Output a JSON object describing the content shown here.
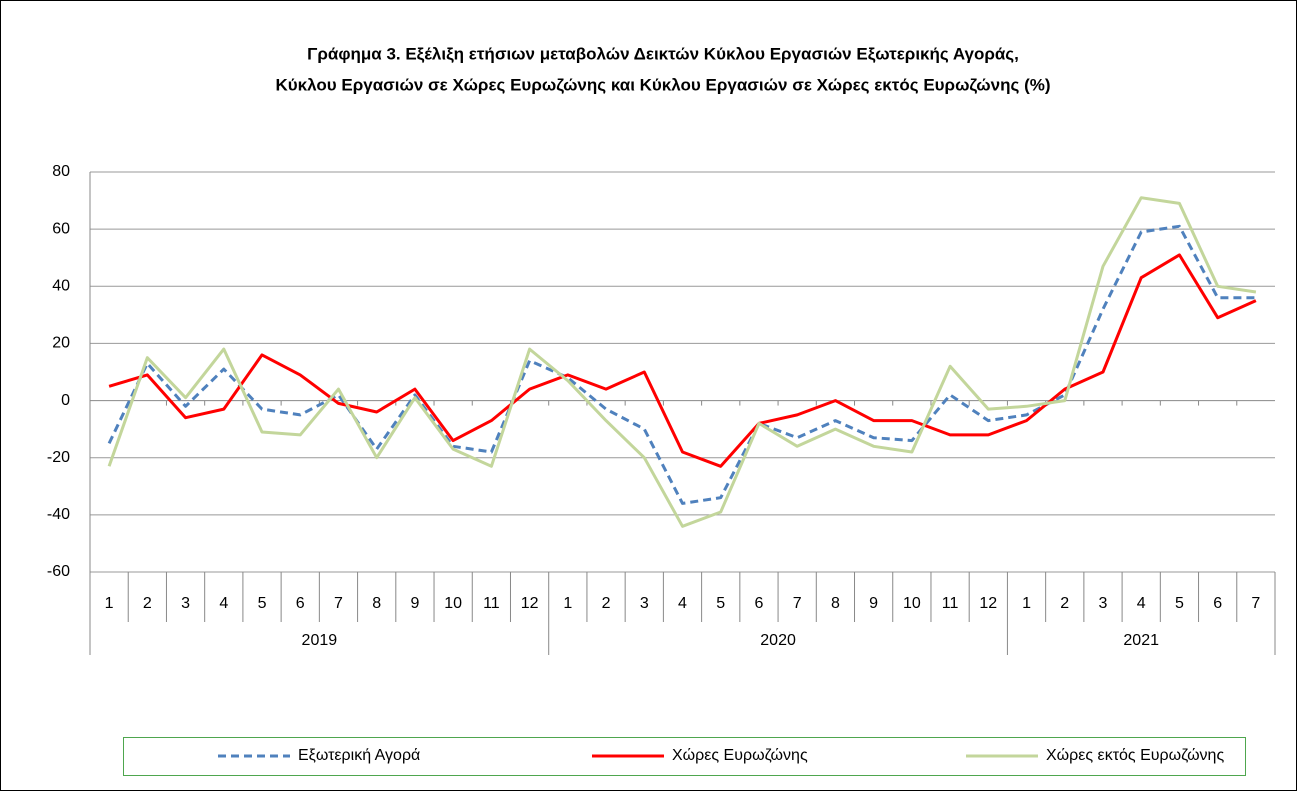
{
  "chart_data": {
    "type": "line",
    "title": [
      "Γράφημα 3. Εξέλιξη  ετήσιων μεταβολών Δεικτών Κύκλου Εργασιών Εξωτερικής Αγοράς,",
      "Κύκλου Εργασιών σε Χώρες Ευρωζώνης και Κύκλου Εργασιών σε Χώρες εκτός Ευρωζώνης (%)"
    ],
    "groups": [
      {
        "label": "2019",
        "categories": [
          "1",
          "2",
          "3",
          "4",
          "5",
          "6",
          "7",
          "8",
          "9",
          "10",
          "11",
          "12"
        ]
      },
      {
        "label": "2020",
        "categories": [
          "1",
          "2",
          "3",
          "4",
          "5",
          "6",
          "7",
          "8",
          "9",
          "10",
          "11",
          "12"
        ]
      },
      {
        "label": "2021",
        "categories": [
          "1",
          "2",
          "3",
          "4",
          "5",
          "6",
          "7"
        ]
      }
    ],
    "series": [
      {
        "name": "Εξωτερική Αγορά",
        "color": "#4f81bd",
        "style": "dashed",
        "values": [
          -15,
          13,
          -2,
          11,
          -3,
          -5,
          2,
          -17,
          2,
          -16,
          -18,
          14,
          8,
          -3,
          -10,
          -36,
          -34,
          -8,
          -13,
          -7,
          -13,
          -14,
          2,
          -7,
          -5,
          2,
          32,
          59,
          61,
          36,
          36
        ]
      },
      {
        "name": "Χώρες Ευρωζώνης",
        "color": "#ff0000",
        "style": "solid",
        "values": [
          5,
          9,
          -6,
          -3,
          16,
          9,
          -1,
          -4,
          4,
          -14,
          -7,
          4,
          9,
          4,
          10,
          -18,
          -23,
          -8,
          -5,
          0,
          -7,
          -7,
          -12,
          -12,
          -7,
          4,
          10,
          43,
          51,
          29,
          35
        ]
      },
      {
        "name": "Χώρες εκτός Ευρωζώνης",
        "color": "#c3d69b",
        "style": "solid",
        "values": [
          -23,
          15,
          1,
          18,
          -11,
          -12,
          4,
          -20,
          1,
          -17,
          -23,
          18,
          7,
          -7,
          -20,
          -44,
          -39,
          -8,
          -16,
          -10,
          -16,
          -18,
          12,
          -3,
          -2,
          0,
          47,
          71,
          69,
          40,
          38
        ]
      }
    ],
    "ylim": [
      -60,
      80
    ],
    "yticks": [
      -60,
      -40,
      -20,
      0,
      20,
      40,
      60,
      80
    ],
    "grid": true,
    "legend": "bottom"
  }
}
